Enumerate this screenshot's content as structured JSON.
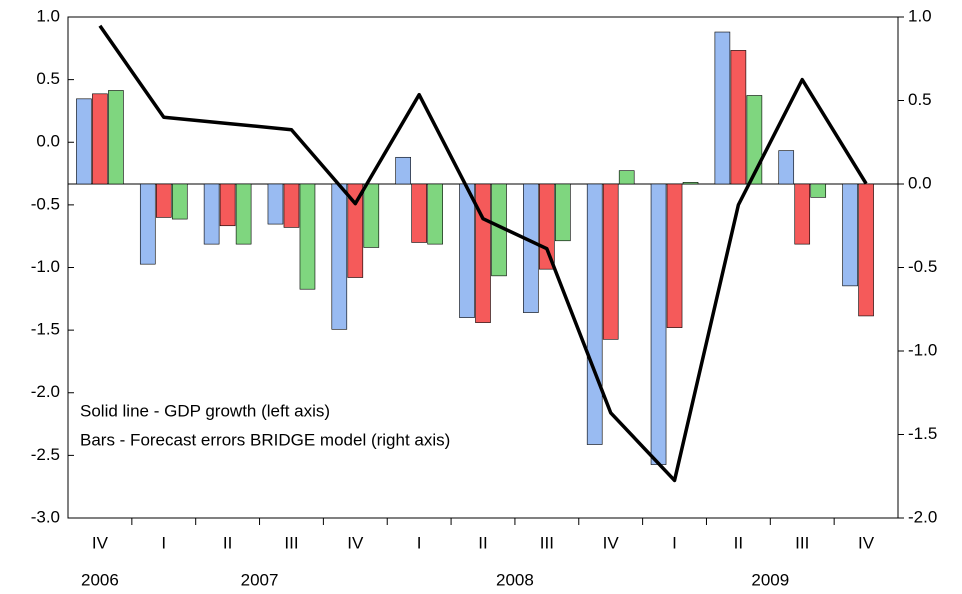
{
  "chart_data": {
    "type": "bar",
    "categories": [
      "IV",
      "I",
      "II",
      "III",
      "IV",
      "I",
      "II",
      "III",
      "IV",
      "I",
      "II",
      "III",
      "IV"
    ],
    "year_groups": [
      {
        "label": "2006",
        "size": 1
      },
      {
        "label": "2007",
        "size": 4
      },
      {
        "label": "2008",
        "size": 4
      },
      {
        "label": "2009",
        "size": 4
      }
    ],
    "annotations": [
      "Solid line - GDP growth (left axis)",
      "Bars - Forecast errors BRIDGE model (right axis)"
    ],
    "line": {
      "type": "line",
      "color": "#000000",
      "axis": "y",
      "values": [
        0.93,
        0.2,
        0.15,
        0.1,
        -0.49,
        0.38,
        -0.61,
        -0.85,
        -2.16,
        -2.7,
        -0.5,
        0.5,
        -0.33
      ]
    },
    "series": [
      {
        "color": "#99bbf2",
        "axis": "y2",
        "values": [
          0.51,
          -0.48,
          -0.36,
          -0.24,
          -0.87,
          0.16,
          -0.8,
          -0.77,
          -1.56,
          -1.68,
          0.91,
          0.2,
          -0.61
        ]
      },
      {
        "color": "#f55a5a",
        "axis": "y2",
        "values": [
          0.54,
          -0.2,
          -0.25,
          -0.26,
          -0.56,
          -0.35,
          -0.83,
          -0.51,
          -0.93,
          -0.86,
          0.8,
          -0.36,
          -0.79
        ]
      },
      {
        "color": "#7fd67f",
        "axis": "y2",
        "values": [
          0.56,
          -0.21,
          -0.36,
          -0.63,
          -0.38,
          -0.36,
          -0.55,
          -0.34,
          0.08,
          0.01,
          0.53,
          -0.08,
          null
        ]
      }
    ],
    "ylim": [
      -3,
      1
    ],
    "yticks": [
      {
        "value": -3,
        "label": "-3.0"
      },
      -2.5,
      {
        "value": -2,
        "label": "-2.0"
      },
      -1.5,
      {
        "value": -1,
        "label": "-1.0"
      },
      -0.5,
      {
        "value": 0,
        "label": "0.0"
      },
      0.5,
      {
        "value": 1,
        "label": "1.0"
      }
    ],
    "y2lim": [
      -2,
      1
    ],
    "y2ticks": [
      {
        "value": -2,
        "label": "-2.0"
      },
      -1.5,
      {
        "value": -1,
        "label": "-1.0"
      },
      -0.5,
      {
        "value": 0,
        "label": "0.0"
      },
      0.5,
      {
        "value": 1,
        "label": "1.0"
      }
    ]
  }
}
